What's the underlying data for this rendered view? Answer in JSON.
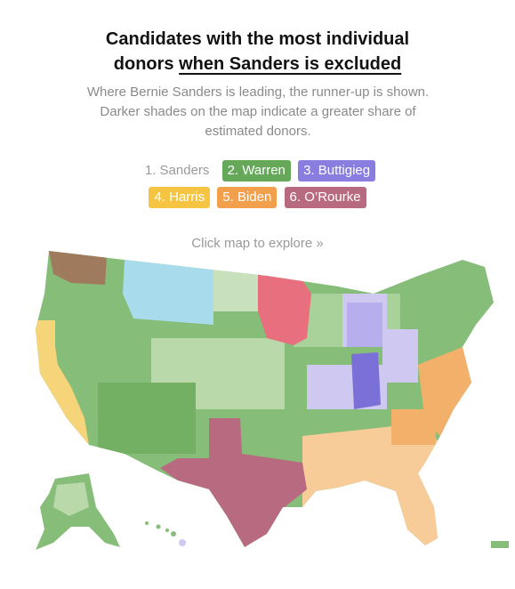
{
  "header": {
    "title_line1": "Candidates with the most individual",
    "title_line2_plain": "donors ",
    "title_line2_underlined": "when Sanders is excluded",
    "subtitle": "Where Bernie Sanders is leading, the runner-up is shown. Darker shades on the map indicate a greater share of estimated donors."
  },
  "legend": {
    "items": [
      {
        "label": "1. Sanders",
        "color": "#ffffff"
      },
      {
        "label": "2. Warren",
        "color": "#66a85a"
      },
      {
        "label": "3. Buttigieg",
        "color": "#8a7de0"
      },
      {
        "label": "4. Harris",
        "color": "#f5c542"
      },
      {
        "label": "5. Biden",
        "color": "#f2a04c"
      },
      {
        "label": "6. O’Rourke",
        "color": "#b86a80"
      }
    ]
  },
  "explore_link": "Click map to explore »",
  "map": {
    "colors": {
      "warren": "#86bd78",
      "warren_light": "#b9d9ab",
      "buttigieg": "#8f86e0",
      "buttigieg_light": "#cfc9f2",
      "harris": "#f6d57a",
      "biden": "#f3b06a",
      "biden_light": "#f7cc98",
      "orourke": "#b86a80",
      "minnesota": "#e8707e",
      "montana": "#a8dced",
      "washington_ne": "#a07a5c",
      "indiana": "#7b6fd8"
    }
  }
}
